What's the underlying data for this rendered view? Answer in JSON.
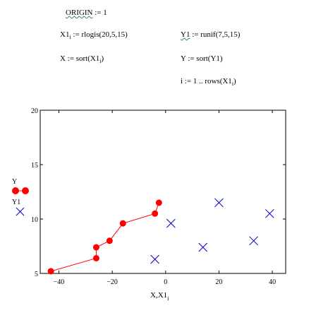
{
  "worksheet": {
    "origin": {
      "lhs": "ORIGIN",
      "rhs": ":= 1"
    },
    "x1_def": {
      "lhs": "X1",
      "sub": "i",
      "rhs": ":= rlogis(20,5,15)"
    },
    "y1_def": {
      "lhs": "Y1",
      "rhs": ":= runif(7,5,15)"
    },
    "x_sort": {
      "text": "X := sort(X1",
      "sub": "i",
      "close": ")"
    },
    "y_sort": {
      "text": "Y := sort(Y1)"
    },
    "range_def": {
      "text": "i := 1 .. rows(X1",
      "sub": "i",
      "close": ")"
    }
  },
  "chart_data": {
    "type": "scatter",
    "xlabel": "X,X1",
    "xlabel_sub": "i",
    "xlim": [
      -47,
      45
    ],
    "ylim": [
      5,
      20
    ],
    "x_ticks": [
      -40,
      -20,
      0,
      20,
      40
    ],
    "y_ticks": [
      5,
      10,
      15,
      20
    ],
    "legend": [
      "Y",
      "Y1"
    ],
    "series": [
      {
        "name": "Y",
        "style": "line-with-dots",
        "color": "#ff0000",
        "points": [
          [
            -43,
            5.2
          ],
          [
            -26,
            6.4
          ],
          [
            -26,
            7.4
          ],
          [
            -21,
            8.0
          ],
          [
            -16,
            9.6
          ],
          [
            -4,
            10.5
          ],
          [
            -2.5,
            11.5
          ]
        ]
      },
      {
        "name": "Y1",
        "style": "x-markers",
        "color": "#0000cc",
        "points": [
          [
            -4,
            6.3
          ],
          [
            2,
            9.6
          ],
          [
            14,
            7.4
          ],
          [
            20,
            11.5
          ],
          [
            33,
            8.0
          ],
          [
            39,
            10.5
          ]
        ]
      }
    ]
  }
}
